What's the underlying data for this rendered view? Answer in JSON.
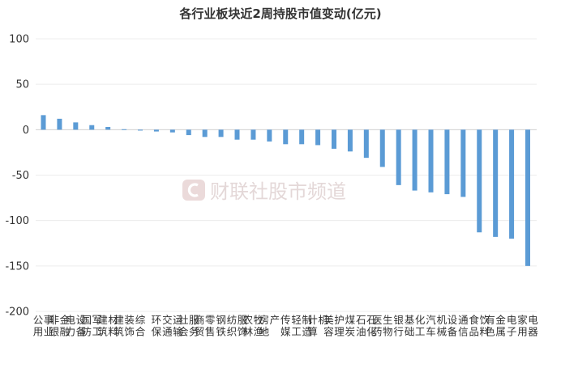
{
  "chart_data": {
    "type": "bar",
    "title": "各行业板块近2周持股市值变动(亿元)",
    "xlabel": "",
    "ylabel": "",
    "ylim": [
      -200,
      100
    ],
    "yticks": [
      100,
      50,
      0,
      -50,
      -100,
      -150,
      -200
    ],
    "grid": true,
    "bar_color": "#5b9bd5",
    "categories": [
      "公用事业",
      "非银金融",
      "电力设备",
      "国防军工",
      "建筑材料",
      "建筑装饰",
      "综合",
      "环保",
      "交通运输",
      "社会服务",
      "商贸零售",
      "钢铁",
      "纺织服饰",
      "农林牧渔",
      "房地产",
      "传媒",
      "轻工制造",
      "计算机",
      "美容护理",
      "煤炭",
      "石油石化",
      "医药生物",
      "银行",
      "基础化工",
      "汽车",
      "机械设备",
      "通信",
      "食品饮料",
      "有色金属",
      "电子",
      "家用电器"
    ],
    "values": [
      16,
      12,
      8,
      5,
      3,
      0.5,
      -1,
      -2,
      -3,
      -6,
      -8,
      -8,
      -11,
      -11,
      -13,
      -16,
      -16,
      -17,
      -21,
      -24,
      -31,
      -41,
      -61,
      -67,
      -69,
      -71,
      -74,
      -113,
      -118,
      -120,
      -150
    ]
  },
  "watermark": {
    "icon": "cls-logo-icon",
    "text": "财联社股市频道"
  }
}
